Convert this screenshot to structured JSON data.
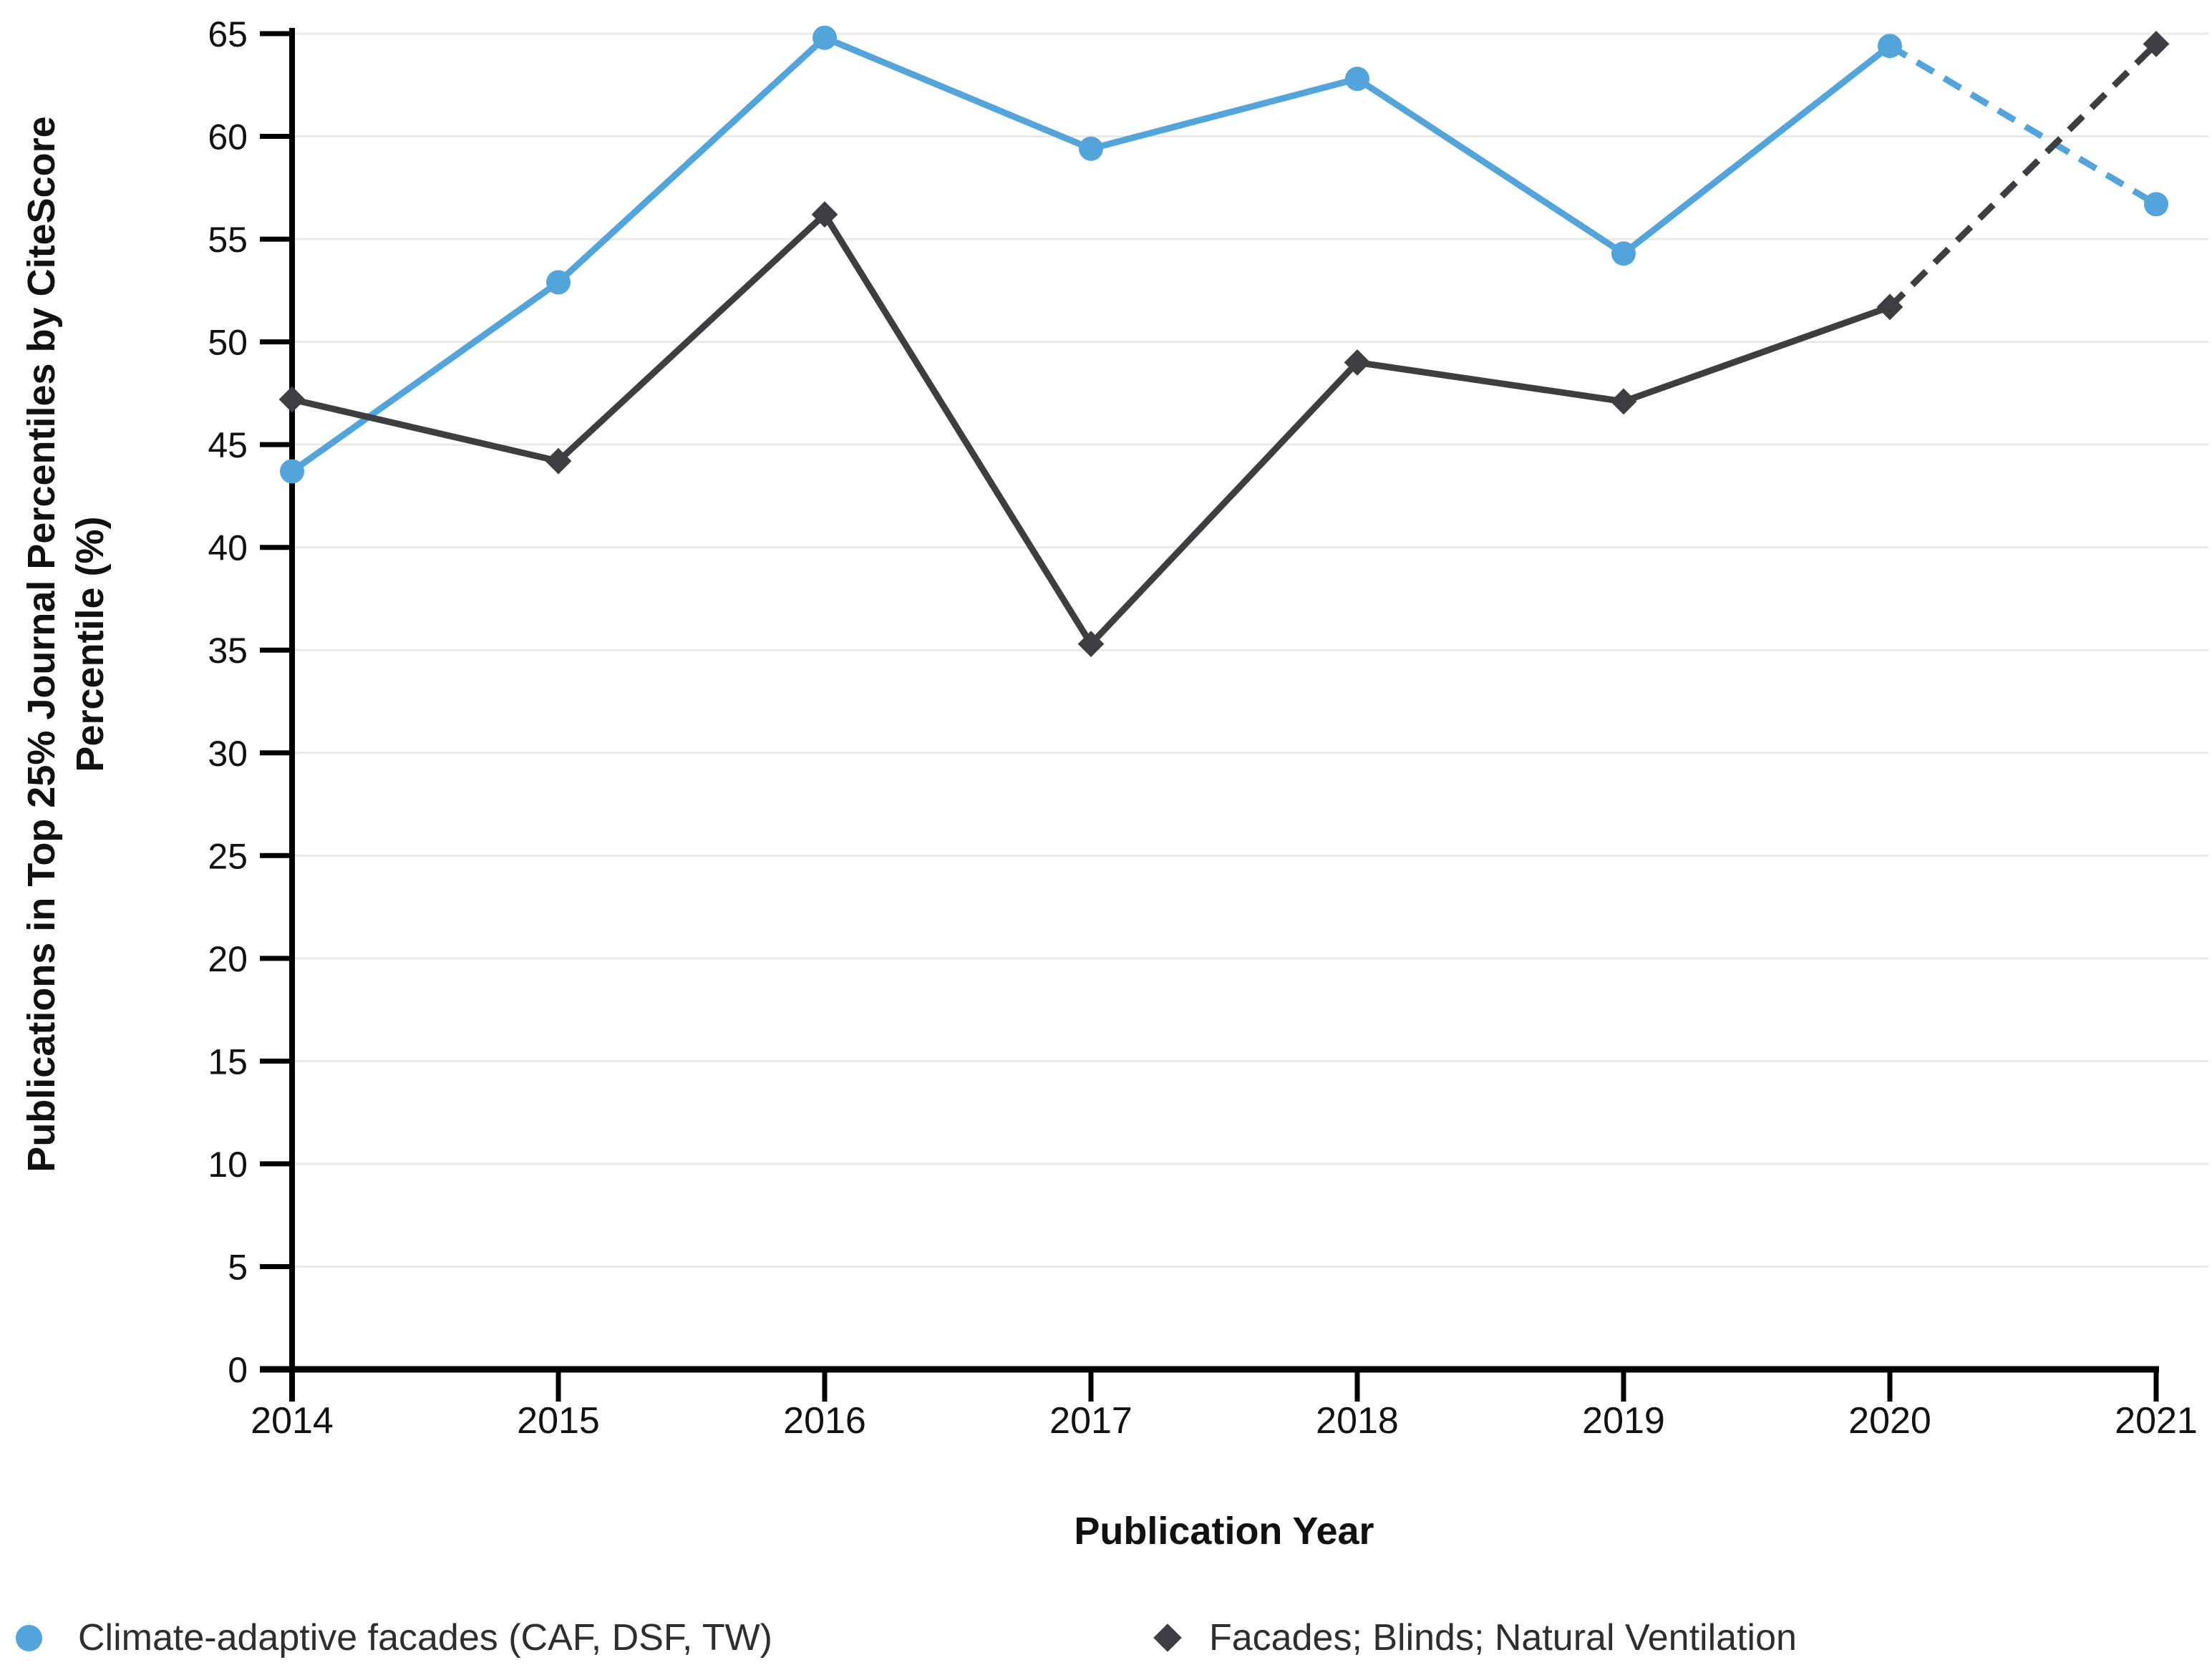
{
  "chart_data": {
    "type": "line",
    "title": "",
    "xlabel": "Publication Year",
    "ylabel_lines": [
      "Publications in Top 25% Journal Percentiles by CiteScore",
      "Percentile (%)"
    ],
    "categories": [
      "2014",
      "2015",
      "2016",
      "2017",
      "2018",
      "2019",
      "2020",
      "2021"
    ],
    "yticks": [
      0,
      5,
      10,
      15,
      20,
      25,
      30,
      35,
      40,
      45,
      50,
      55,
      60,
      65
    ],
    "ylim": [
      0,
      65
    ],
    "grid": "horizontal",
    "legend_position": "bottom",
    "series": [
      {
        "name": "Climate-adaptive facades (CAF, DSF, TW)",
        "color": "#54A4DC",
        "marker": "circle",
        "values": [
          43.7,
          52.9,
          64.8,
          59.4,
          62.8,
          54.3,
          64.4,
          56.7
        ],
        "last_segment_dashed": true
      },
      {
        "name": "Facades; Blinds; Natural Ventilation",
        "color": "#3D3D42",
        "marker": "diamond",
        "values": [
          47.2,
          44.2,
          56.2,
          35.3,
          49.0,
          47.1,
          51.7,
          64.5
        ],
        "last_segment_dashed": true
      }
    ]
  },
  "colors": {
    "grid": "#E9E9E9",
    "axis": "#000000",
    "tick_label": "#111111",
    "legend_text": "#2E2E2E",
    "background": "#FFFFFF"
  }
}
